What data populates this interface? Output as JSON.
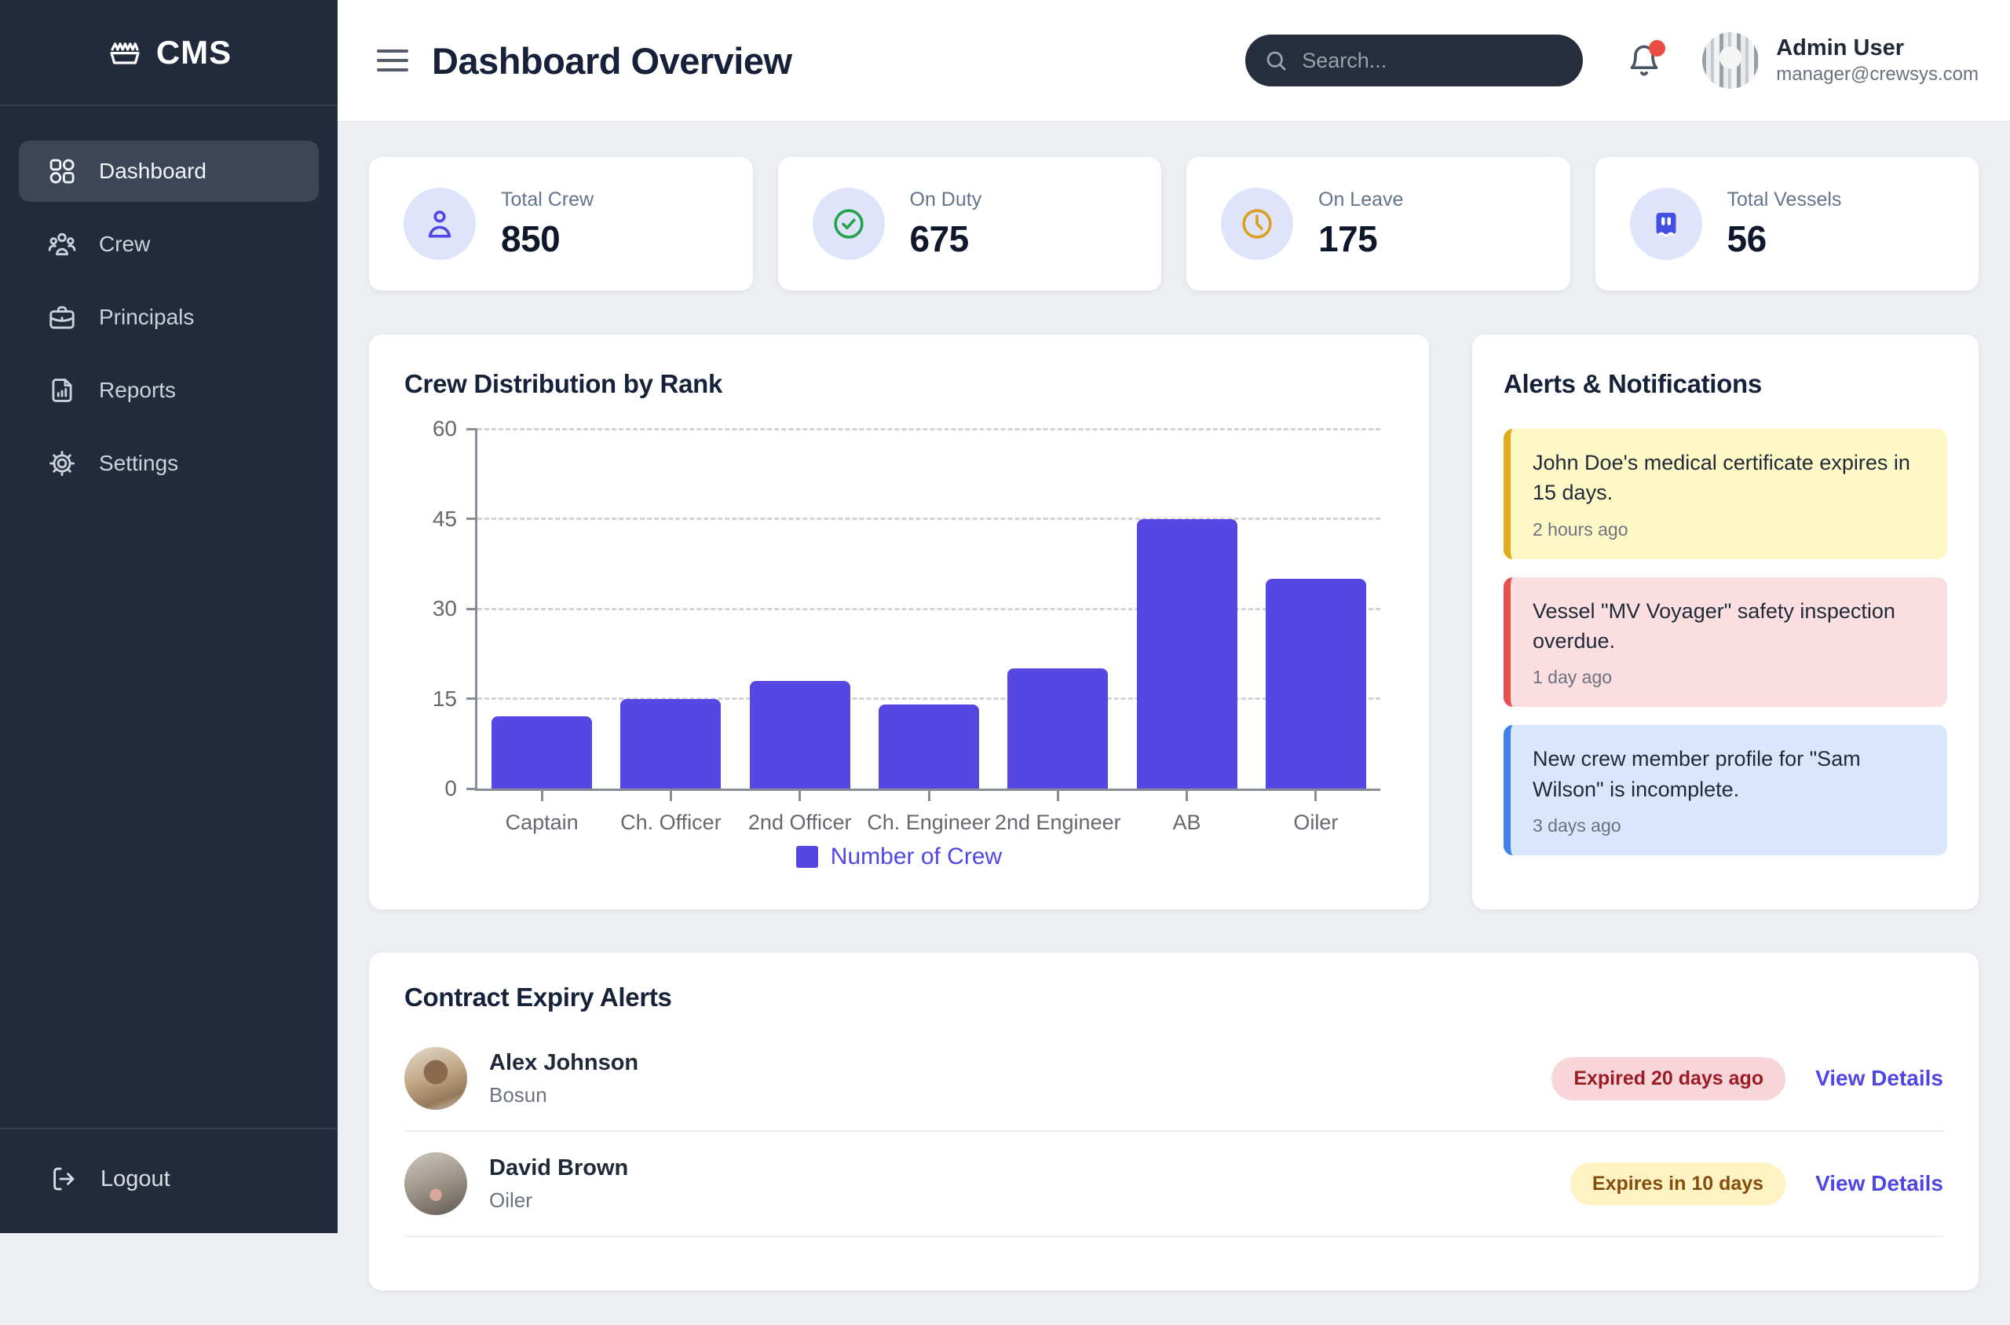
{
  "sidebar": {
    "logo_text": "CMS",
    "logo_icon": "ship-logo-icon",
    "items": [
      {
        "label": "Dashboard",
        "icon": "grid-icon",
        "active": true
      },
      {
        "label": "Crew",
        "icon": "users-icon",
        "active": false
      },
      {
        "label": "Principals",
        "icon": "briefcase-icon",
        "active": false
      },
      {
        "label": "Reports",
        "icon": "file-chart-icon",
        "active": false
      },
      {
        "label": "Settings",
        "icon": "gear-icon",
        "active": false
      }
    ],
    "logout_label": "Logout",
    "colors": {
      "background": "#222b3b",
      "active_item": "#3c4657"
    }
  },
  "header": {
    "title": "Dashboard Overview",
    "search_placeholder": "Search...",
    "notifications": {
      "icon": "bell-icon",
      "unread_dot": true,
      "dot_color": "#ea4b42"
    },
    "user": {
      "name": "Admin User",
      "email": "manager@crewsys.com"
    }
  },
  "stats": [
    {
      "label": "Total Crew",
      "value": "850",
      "icon": "person-icon",
      "icon_color": "#4f46e5",
      "icon_bg": "#e0e4fb"
    },
    {
      "label": "On Duty",
      "value": "675",
      "icon": "check-circle-icon",
      "icon_color": "#23a34b",
      "icon_bg": "#e0e4fb"
    },
    {
      "label": "On Leave",
      "value": "175",
      "icon": "clock-icon",
      "icon_color": "#d9a021",
      "icon_bg": "#e0e4fb"
    },
    {
      "label": "Total Vessels",
      "value": "56",
      "icon": "vessel-icon",
      "icon_color": "#4150e0",
      "icon_bg": "#e0e4fb"
    }
  ],
  "chart_card": {
    "title": "Crew Distribution by Rank"
  },
  "chart_data": {
    "type": "bar",
    "title": "Crew Distribution by Rank",
    "categories": [
      "Captain",
      "Ch. Officer",
      "2nd Officer",
      "Ch. Engineer",
      "2nd Engineer",
      "AB",
      "Oiler"
    ],
    "values": [
      12,
      15,
      18,
      14,
      20,
      45,
      35
    ],
    "series_label": "Number of Crew",
    "xlabel": "",
    "ylabel": "",
    "ylim": [
      0,
      60
    ],
    "yticks": [
      0,
      15,
      30,
      45,
      60
    ],
    "grid": "horizontal-dashed",
    "legend_position": "bottom",
    "bar_color": "#5447e2",
    "legend_text_color": "#4f46e5"
  },
  "alerts_card": {
    "title": "Alerts & Notifications",
    "alerts": [
      {
        "message": "John Doe's medical certificate expires in 15 days.",
        "time": "2 hours ago",
        "severity": "warning",
        "accent_color": "#e0ac1c",
        "bg_color": "#fdf8c5"
      },
      {
        "message": "Vessel \"MV Voyager\" safety inspection overdue.",
        "time": "1 day ago",
        "severity": "danger",
        "accent_color": "#e8504b",
        "bg_color": "#fbdfe0"
      },
      {
        "message": "New crew member profile for \"Sam Wilson\" is incomplete.",
        "time": "3 days ago",
        "severity": "info",
        "accent_color": "#4080ee",
        "bg_color": "#d9e6fb"
      }
    ]
  },
  "contracts_card": {
    "title": "Contract Expiry Alerts",
    "rows": [
      {
        "name": "Alex Johnson",
        "role": "Bosun",
        "badge": "Expired 20 days ago",
        "badge_style": "danger",
        "action": "View Details"
      },
      {
        "name": "David Brown",
        "role": "Oiler",
        "badge": "Expires in 10 days",
        "badge_style": "warning",
        "action": "View Details"
      }
    ]
  }
}
